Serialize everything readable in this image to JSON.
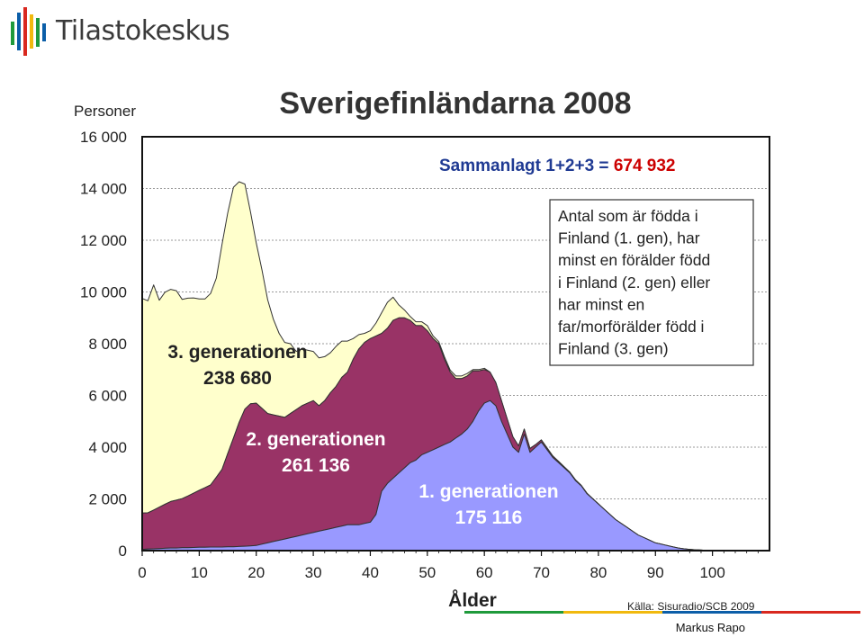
{
  "brand": {
    "name": "Tilastokeskus",
    "stripe_colors": [
      "#1f9a3b",
      "#0b5ea8",
      "#d9281f",
      "#f1b90e"
    ]
  },
  "author": "Markus Rapo",
  "footer_line_colors": [
    "#1f9a3b",
    "#f1b90e",
    "#0b5ea8",
    "#d9281f"
  ],
  "chart_data": {
    "type": "area",
    "title": "Sverigefinländarna 2008",
    "ylabel": "Personer",
    "xlabel": "Ålder",
    "xlim": [
      0,
      110
    ],
    "ylim": [
      0,
      16000
    ],
    "x_ticks": [
      "0",
      "10",
      "20",
      "30",
      "40",
      "50",
      "60",
      "70",
      "80",
      "90",
      "100"
    ],
    "x_tick_values": [
      0,
      10,
      20,
      30,
      40,
      50,
      60,
      70,
      80,
      90,
      100
    ],
    "y_ticks": [
      "0",
      "2 000",
      "4 000",
      "6 000",
      "8 000",
      "10 000",
      "12 000",
      "14 000",
      "16 000"
    ],
    "y_tick_values": [
      0,
      2000,
      4000,
      6000,
      8000,
      10000,
      12000,
      14000,
      16000
    ],
    "grid": "horizontal",
    "stacked": true,
    "x": [
      0,
      1,
      2,
      3,
      4,
      5,
      6,
      7,
      8,
      9,
      10,
      11,
      12,
      13,
      14,
      15,
      16,
      17,
      18,
      19,
      20,
      21,
      22,
      23,
      24,
      25,
      26,
      27,
      28,
      29,
      30,
      31,
      32,
      33,
      34,
      35,
      36,
      37,
      38,
      39,
      40,
      41,
      42,
      43,
      44,
      45,
      46,
      47,
      48,
      49,
      50,
      51,
      52,
      53,
      54,
      55,
      56,
      57,
      58,
      59,
      60,
      61,
      62,
      63,
      64,
      65,
      66,
      67,
      68,
      69,
      70,
      71,
      72,
      73,
      74,
      75,
      76,
      77,
      78,
      79,
      80,
      81,
      82,
      83,
      84,
      85,
      86,
      87,
      88,
      89,
      90,
      91,
      92,
      93,
      94,
      95,
      96,
      97,
      98,
      99,
      100,
      101,
      102,
      103,
      104,
      105,
      106,
      107,
      108,
      109,
      110
    ],
    "series": [
      {
        "name": "1. generationen",
        "label_lines": [
          "1. generationen",
          "175 116"
        ],
        "color": "#9999ff",
        "values": [
          50,
          60,
          70,
          80,
          90,
          100,
          100,
          110,
          110,
          120,
          130,
          130,
          140,
          140,
          140,
          150,
          150,
          160,
          170,
          180,
          200,
          250,
          300,
          350,
          400,
          450,
          500,
          550,
          600,
          650,
          700,
          750,
          800,
          850,
          900,
          950,
          1000,
          1000,
          1000,
          1050,
          1100,
          1400,
          2300,
          2600,
          2800,
          3000,
          3200,
          3400,
          3500,
          3700,
          3800,
          3900,
          4000,
          4100,
          4200,
          4350,
          4500,
          4700,
          5000,
          5400,
          5700,
          5800,
          5600,
          5000,
          4500,
          4000,
          3800,
          4500,
          3800,
          4000,
          4200,
          3900,
          3600,
          3400,
          3200,
          3000,
          2700,
          2500,
          2200,
          2000,
          1800,
          1600,
          1400,
          1200,
          1050,
          900,
          750,
          600,
          500,
          400,
          300,
          250,
          200,
          150,
          100,
          70,
          50,
          30,
          20,
          10,
          10,
          5,
          5,
          0,
          0,
          0,
          0,
          0,
          0,
          0,
          0
        ]
      },
      {
        "name": "2. generationen",
        "label_lines": [
          "2. generationen",
          "261 136"
        ],
        "color": "#993366",
        "values": [
          1400,
          1400,
          1500,
          1600,
          1700,
          1800,
          1850,
          1900,
          2000,
          2100,
          2200,
          2300,
          2400,
          2700,
          3000,
          3600,
          4200,
          4800,
          5300,
          5500,
          5500,
          5250,
          5000,
          4900,
          4800,
          4700,
          4800,
          4900,
          5000,
          5050,
          5100,
          4850,
          5000,
          5250,
          5450,
          5750,
          5900,
          6400,
          6800,
          7000,
          7100,
          6900,
          6100,
          6000,
          6100,
          6000,
          5800,
          5500,
          5200,
          5000,
          4700,
          4300,
          4000,
          3300,
          2700,
          2300,
          2150,
          2050,
          1950,
          1550,
          1300,
          1100,
          900,
          800,
          600,
          400,
          250,
          200,
          150,
          100,
          80,
          70,
          60,
          50,
          40,
          30,
          30,
          20,
          20,
          10,
          10,
          5,
          5,
          5,
          0,
          0,
          0,
          0,
          0,
          0,
          0,
          0,
          0,
          0,
          0,
          0,
          0,
          0,
          0,
          0,
          0,
          0,
          0,
          0,
          0,
          0,
          0,
          0,
          0,
          0,
          0
        ]
      },
      {
        "name": "3. generationen",
        "label_lines": [
          "3. generationen",
          "238 680"
        ],
        "color": "#ffffcc",
        "values": [
          8300,
          8200,
          8700,
          8000,
          8200,
          8200,
          8100,
          7700,
          7650,
          7550,
          7400,
          7300,
          7400,
          7700,
          8700,
          9300,
          9700,
          9300,
          8700,
          7400,
          6200,
          5350,
          4400,
          3700,
          3200,
          2900,
          2700,
          2250,
          2200,
          2050,
          1900,
          1850,
          1700,
          1550,
          1550,
          1400,
          1200,
          800,
          550,
          350,
          300,
          500,
          800,
          1000,
          900,
          500,
          300,
          150,
          150,
          150,
          200,
          100,
          80,
          100,
          80,
          100,
          100,
          100,
          50,
          50,
          50,
          0,
          0,
          0,
          0,
          0,
          0,
          0,
          0,
          0,
          0,
          0,
          0,
          0,
          0,
          0,
          0,
          0,
          0,
          0,
          0,
          0,
          0,
          0,
          0,
          0,
          0,
          0,
          0,
          0,
          0,
          0,
          0,
          0,
          0,
          0,
          0,
          0,
          0,
          0,
          0,
          0,
          0,
          0,
          0,
          0,
          0,
          0,
          0,
          0,
          0
        ]
      }
    ],
    "annotations": {
      "total_prefix": "Sammanlagt  1+2+3 = ",
      "total_value": "674 932",
      "info_box_lines": [
        "Antal som är födda i",
        "Finland (1. gen), har",
        "minst en förälder född",
        "i Finland (2. gen) eller",
        "har minst en",
        "far/morförälder född i",
        "Finland (3. gen)"
      ],
      "source": "Källa: Sisuradio/SCB 2009"
    }
  }
}
